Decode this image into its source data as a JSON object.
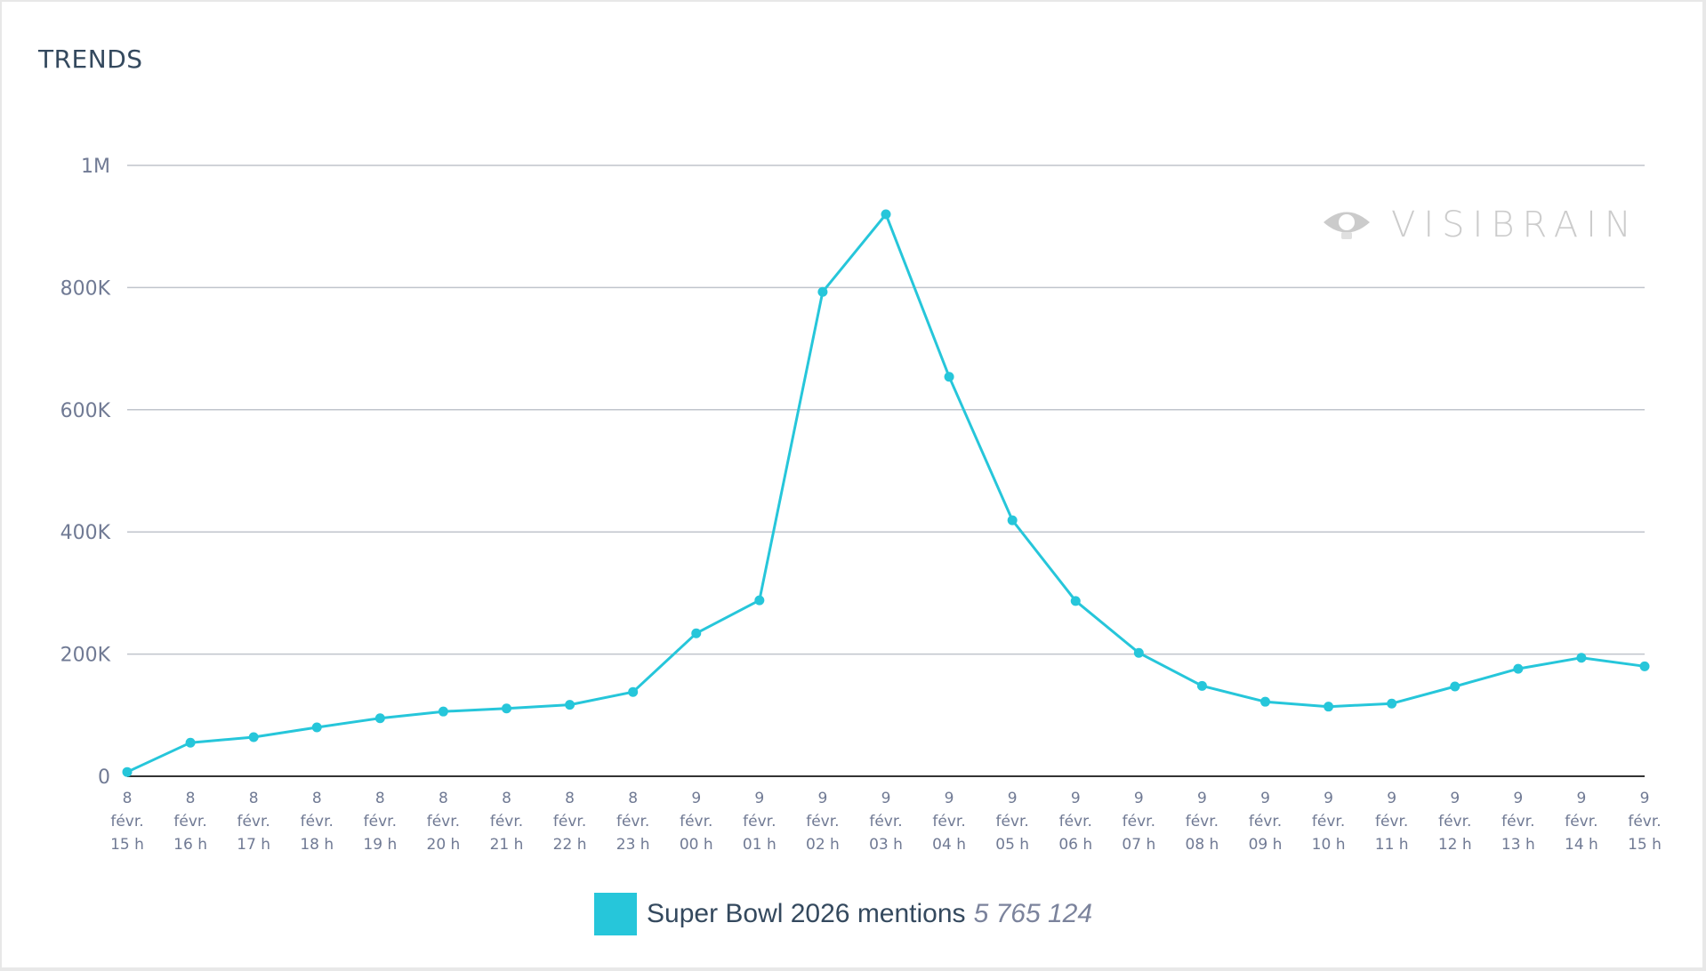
{
  "card": {
    "title": "TRENDS"
  },
  "watermark": {
    "brand": "VISIBRAIN",
    "icon": "eye-icon"
  },
  "legend": {
    "label": "Super Bowl 2026 mentions",
    "total": "5 765 124",
    "color": "#26c6da"
  },
  "colors": {
    "series": "#26c6da",
    "grid": "#c0c4cc",
    "axis": "#333333",
    "title": "#34495e",
    "tick": "#707a94"
  },
  "chart_data": {
    "type": "line",
    "title": "TRENDS",
    "xlabel": "",
    "ylabel": "",
    "ylim": [
      0,
      1000000
    ],
    "yticks": [
      0,
      200000,
      400000,
      600000,
      800000,
      1000000
    ],
    "ytick_labels": [
      "0",
      "200K",
      "400K",
      "600K",
      "800K",
      "1M"
    ],
    "grid": true,
    "legend_position": "bottom",
    "categories": [
      "8 févr. 15 h",
      "8 févr. 16 h",
      "8 févr. 17 h",
      "8 févr. 18 h",
      "8 févr. 19 h",
      "8 févr. 20 h",
      "8 févr. 21 h",
      "8 févr. 22 h",
      "8 févr. 23 h",
      "9 févr. 00 h",
      "9 févr. 01 h",
      "9 févr. 02 h",
      "9 févr. 03 h",
      "9 févr. 04 h",
      "9 févr. 05 h",
      "9 févr. 06 h",
      "9 févr. 07 h",
      "9 févr. 08 h",
      "9 févr. 09 h",
      "9 févr. 10 h",
      "9 févr. 11 h",
      "9 févr. 12 h",
      "9 févr. 13 h",
      "9 févr. 14 h",
      "9 févr. 15 h"
    ],
    "x_labels": [
      [
        "8",
        "févr.",
        "15 h"
      ],
      [
        "8",
        "févr.",
        "16 h"
      ],
      [
        "8",
        "févr.",
        "17 h"
      ],
      [
        "8",
        "févr.",
        "18 h"
      ],
      [
        "8",
        "févr.",
        "19 h"
      ],
      [
        "8",
        "févr.",
        "20 h"
      ],
      [
        "8",
        "févr.",
        "21 h"
      ],
      [
        "8",
        "févr.",
        "22 h"
      ],
      [
        "8",
        "févr.",
        "23 h"
      ],
      [
        "9",
        "févr.",
        "00 h"
      ],
      [
        "9",
        "févr.",
        "01 h"
      ],
      [
        "9",
        "févr.",
        "02 h"
      ],
      [
        "9",
        "févr.",
        "03 h"
      ],
      [
        "9",
        "févr.",
        "04 h"
      ],
      [
        "9",
        "févr.",
        "05 h"
      ],
      [
        "9",
        "févr.",
        "06 h"
      ],
      [
        "9",
        "févr.",
        "07 h"
      ],
      [
        "9",
        "févr.",
        "08 h"
      ],
      [
        "9",
        "févr.",
        "09 h"
      ],
      [
        "9",
        "févr.",
        "10 h"
      ],
      [
        "9",
        "févr.",
        "11 h"
      ],
      [
        "9",
        "févr.",
        "12 h"
      ],
      [
        "9",
        "févr.",
        "13 h"
      ],
      [
        "9",
        "févr.",
        "14 h"
      ],
      [
        "9",
        "févr.",
        "15 h"
      ]
    ],
    "series": [
      {
        "name": "Super Bowl 2026 mentions",
        "total": "5 765 124",
        "color": "#26c6da",
        "values": [
          7000,
          55000,
          64000,
          80000,
          95000,
          106000,
          111000,
          117000,
          138000,
          234000,
          288000,
          793000,
          920000,
          654000,
          419000,
          287000,
          202000,
          148000,
          122000,
          114000,
          119000,
          147000,
          176000,
          194000,
          180000
        ]
      }
    ]
  }
}
